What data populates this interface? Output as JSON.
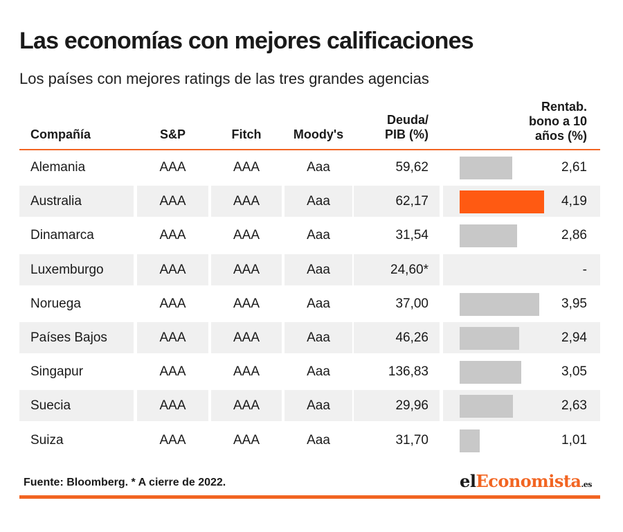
{
  "title": "Las economías con mejores calificaciones",
  "subtitle": "Los países con mejores ratings de las tres grandes agencias",
  "headers": {
    "company": "Compañía",
    "sp": "S&P",
    "fitch": "Fitch",
    "moodys": "Moody's",
    "debt_line1": "Deuda/",
    "debt_line2": "PIB (%)",
    "yield_line1": "Rentab.",
    "yield_line2": "bono a 10",
    "yield_line3": "años (%)"
  },
  "colors": {
    "accent": "#f26522",
    "highlight_bar": "#ff5a12",
    "bar": "#c8c8c8",
    "row_alt": "#f0f0f0"
  },
  "chart_data": {
    "type": "table",
    "columns": [
      "Compañía",
      "S&P",
      "Fitch",
      "Moody's",
      "Deuda/PIB (%)",
      "Rentab. bono a 10 años (%)"
    ],
    "bar_column": "Rentab. bono a 10 años (%)",
    "bar_max": 4.19,
    "highlight": "Australia",
    "rows": [
      {
        "name": "Alemania",
        "sp": "AAA",
        "fitch": "AAA",
        "moodys": "Aaa",
        "debt": "59,62",
        "yield": "2,61",
        "yield_value": 2.61
      },
      {
        "name": "Australia",
        "sp": "AAA",
        "fitch": "AAA",
        "moodys": "Aaa",
        "debt": "62,17",
        "yield": "4,19",
        "yield_value": 4.19
      },
      {
        "name": "Dinamarca",
        "sp": "AAA",
        "fitch": "AAA",
        "moodys": "Aaa",
        "debt": "31,54",
        "yield": "2,86",
        "yield_value": 2.86
      },
      {
        "name": "Luxemburgo",
        "sp": "AAA",
        "fitch": "AAA",
        "moodys": "Aaa",
        "debt": "24,60*",
        "yield": "-",
        "yield_value": null
      },
      {
        "name": "Noruega",
        "sp": "AAA",
        "fitch": "AAA",
        "moodys": "Aaa",
        "debt": "37,00",
        "yield": "3,95",
        "yield_value": 3.95
      },
      {
        "name": "Países Bajos",
        "sp": "AAA",
        "fitch": "AAA",
        "moodys": "Aaa",
        "debt": "46,26",
        "yield": "2,94",
        "yield_value": 2.94
      },
      {
        "name": "Singapur",
        "sp": "AAA",
        "fitch": "AAA",
        "moodys": "Aaa",
        "debt": "136,83",
        "yield": "3,05",
        "yield_value": 3.05
      },
      {
        "name": "Suecia",
        "sp": "AAA",
        "fitch": "AAA",
        "moodys": "Aaa",
        "debt": "29,96",
        "yield": "2,63",
        "yield_value": 2.63
      },
      {
        "name": "Suiza",
        "sp": "AAA",
        "fitch": "AAA",
        "moodys": "Aaa",
        "debt": "31,70",
        "yield": "1,01",
        "yield_value": 1.01
      }
    ]
  },
  "footer": {
    "source": "Fuente: Bloomberg. * A cierre de 2022.",
    "logo_part1": "el",
    "logo_part2": "Economista",
    "logo_part3": ".es"
  }
}
